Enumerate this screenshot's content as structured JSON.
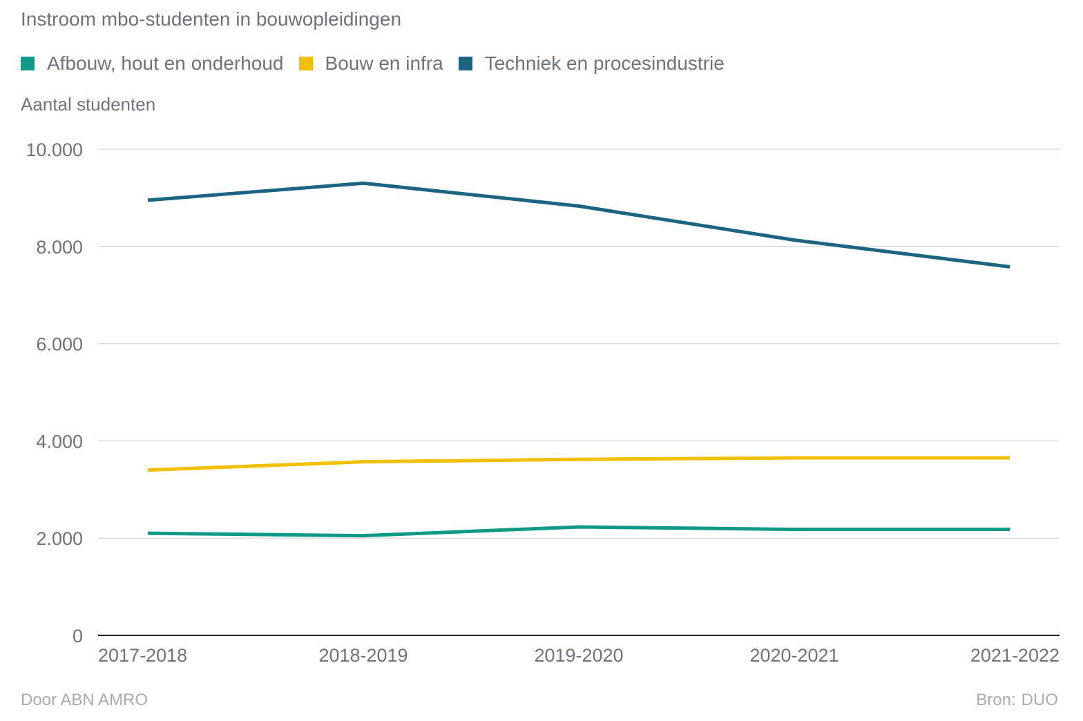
{
  "header": {
    "title": "Instroom mbo-studenten in bouwopleidingen"
  },
  "footer": {
    "credit": "Door ABN AMRO",
    "source_label": "Bron:",
    "source": "DUO"
  },
  "chart_data": {
    "type": "line",
    "title": "Instroom mbo-studenten in bouwopleidingen",
    "ylabel": "Aantal studenten",
    "xlabel": "",
    "categories": [
      "2017-2018",
      "2018-2019",
      "2019-2020",
      "2020-2021",
      "2021-2022"
    ],
    "ylim": [
      0,
      10000
    ],
    "yticks": [
      0,
      2000,
      4000,
      6000,
      8000,
      10000
    ],
    "ytick_labels": [
      "0",
      "2.000",
      "4.000",
      "6.000",
      "8.000",
      "10.000"
    ],
    "grid": true,
    "legend_position": "top-left",
    "series": [
      {
        "name": "Afbouw, hout en onderhoud",
        "color": "#0e9a86",
        "values": [
          2100,
          2050,
          2230,
          2180,
          2180
        ]
      },
      {
        "name": "Bouw en infra",
        "color": "#f1c000",
        "values": [
          3400,
          3570,
          3620,
          3650,
          3650
        ]
      },
      {
        "name": "Techniek en procesindustrie",
        "color": "#1b6482",
        "values": [
          8950,
          9300,
          8830,
          8130,
          7580
        ]
      }
    ]
  }
}
